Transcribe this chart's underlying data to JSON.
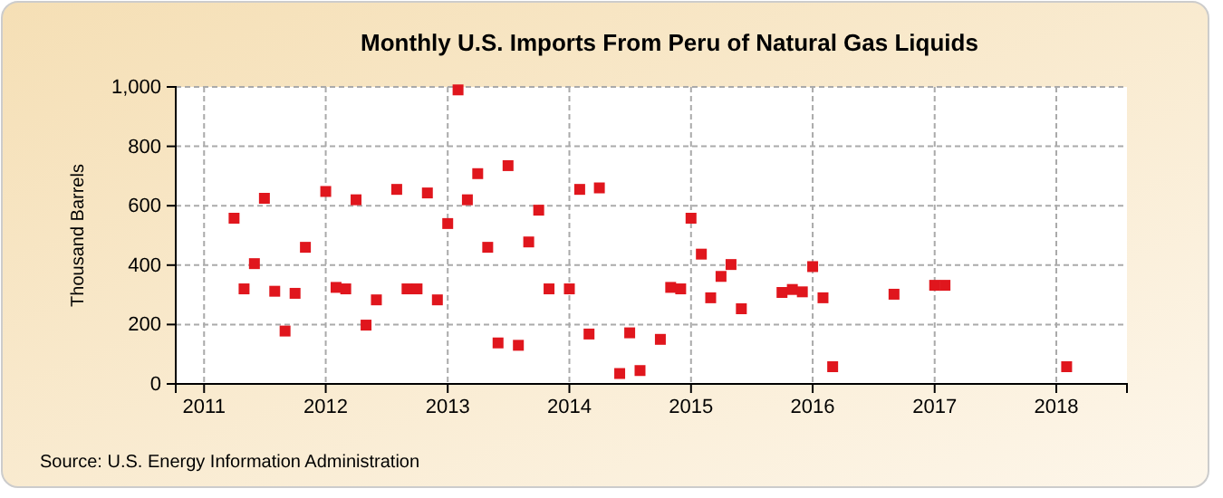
{
  "chart_data": {
    "type": "scatter",
    "title": "Monthly U.S. Imports From Peru of Natural Gas Liquids",
    "ylabel": "Thousand Barrels",
    "annotations": [
      "Source: U.S. Energy Information Administration"
    ],
    "x": [
      "2011-04",
      "2011-05",
      "2011-06",
      "2011-07",
      "2011-08",
      "2011-09",
      "2011-10",
      "2011-11",
      "2012-01",
      "2012-02",
      "2012-03",
      "2012-04",
      "2012-05",
      "2012-06",
      "2012-08",
      "2012-09",
      "2012-10",
      "2012-11",
      "2012-12",
      "2013-01",
      "2013-02",
      "2013-03",
      "2013-04",
      "2013-05",
      "2013-06",
      "2013-07",
      "2013-08",
      "2013-09",
      "2013-10",
      "2013-11",
      "2014-01",
      "2014-02",
      "2014-03",
      "2014-04",
      "2014-06",
      "2014-07",
      "2014-08",
      "2014-10",
      "2014-11",
      "2014-12",
      "2015-01",
      "2015-02",
      "2015-03",
      "2015-04",
      "2015-05",
      "2015-06",
      "2015-10",
      "2015-11",
      "2015-12",
      "2016-01",
      "2016-02",
      "2016-03",
      "2016-09",
      "2017-01",
      "2017-02",
      "2018-02"
    ],
    "series": [
      {
        "color": "#e0161d",
        "values": [
          558,
          320,
          405,
          625,
          312,
          178,
          305,
          460,
          648,
          325,
          320,
          620,
          198,
          283,
          655,
          320,
          320,
          643,
          283,
          540,
          990,
          620,
          708,
          460,
          138,
          735,
          130,
          478,
          585,
          320,
          320,
          655,
          168,
          660,
          35,
          172,
          45,
          150,
          325,
          320,
          558,
          437,
          290,
          362,
          402,
          253,
          308,
          318,
          310,
          395,
          290,
          58,
          302,
          332,
          332,
          58
        ]
      }
    ],
    "xlim": [
      "2010-10-08",
      "2018-08"
    ],
    "xticks": [
      "2011",
      "2012",
      "2013",
      "2014",
      "2015",
      "2016",
      "2017",
      "2018"
    ],
    "ylim": [
      0,
      1000
    ],
    "yticks": [
      0,
      200,
      400,
      600,
      800,
      {
        "value": 1000,
        "label": "1,000"
      }
    ],
    "grid": true,
    "marker": "square"
  }
}
